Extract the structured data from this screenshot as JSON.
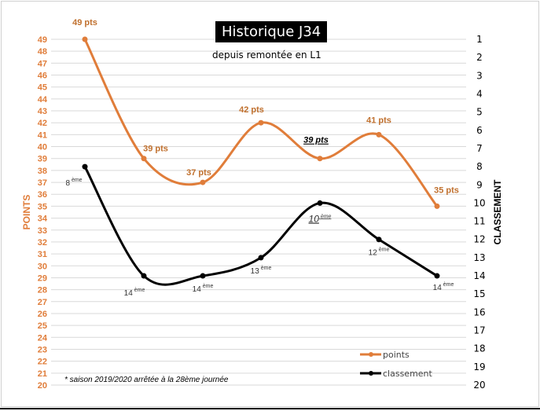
{
  "chart_data": {
    "type": "line",
    "title": "Historique J34",
    "subtitle": "depuis remontée en L1",
    "ylabel": "POINTS",
    "y2label": "CLASSEMENT",
    "ylim": [
      20,
      49
    ],
    "y2lim": [
      1,
      20
    ],
    "y2_inverted": true,
    "grid": true,
    "legend_placement": "bottom-right",
    "footnote": "* saison 2019/2020 arrêtée à la 28ème journée",
    "series": [
      {
        "name": "points",
        "axis": "left",
        "color": "#E07D3A",
        "values": [
          49,
          39,
          37,
          42,
          39,
          41,
          35
        ],
        "labels": [
          "49 pts",
          "39 pts",
          "37 pts",
          "42 pts",
          "39 pts",
          "41 pts",
          "35 pts"
        ]
      },
      {
        "name": "classement",
        "axis": "right",
        "color": "#000000",
        "values": [
          8,
          14,
          14,
          13,
          10,
          12,
          14
        ],
        "labels": [
          "8",
          "14",
          "14",
          "13",
          "10",
          "12",
          "14"
        ],
        "label_suffix": "ème"
      }
    ],
    "highlighted_index": 4
  }
}
